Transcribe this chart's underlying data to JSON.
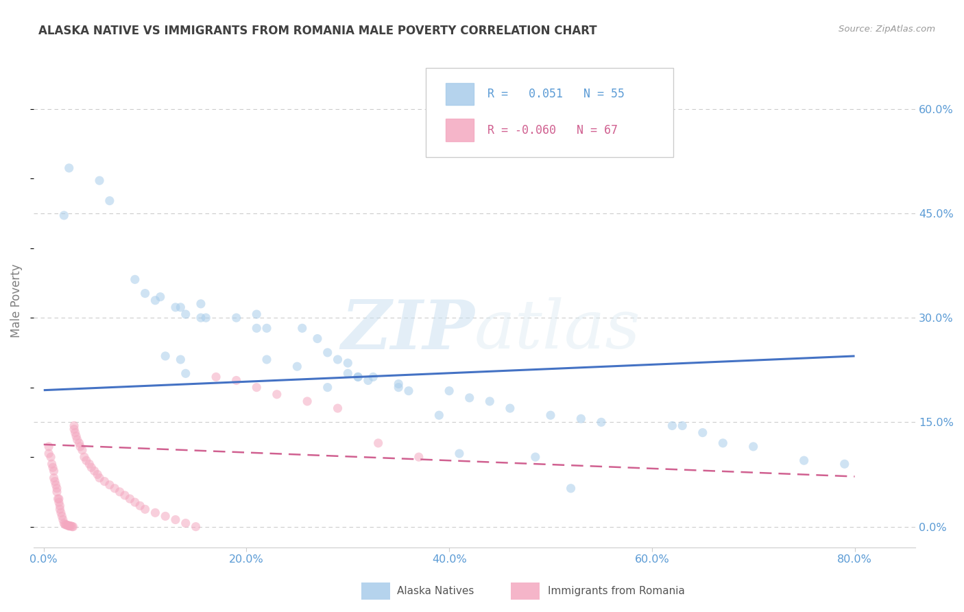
{
  "title": "ALASKA NATIVE VS IMMIGRANTS FROM ROMANIA MALE POVERTY CORRELATION CHART",
  "source": "Source: ZipAtlas.com",
  "xlabel_ticks": [
    "0.0%",
    "20.0%",
    "40.0%",
    "60.0%",
    "80.0%"
  ],
  "xlabel_vals": [
    0.0,
    0.2,
    0.4,
    0.6,
    0.8
  ],
  "ylabel": "Male Poverty",
  "ylabel_ticks": [
    "0.0%",
    "15.0%",
    "30.0%",
    "45.0%",
    "60.0%"
  ],
  "ylabel_vals": [
    0.0,
    0.15,
    0.3,
    0.45,
    0.6
  ],
  "ylim": [
    -0.03,
    0.68
  ],
  "xlim": [
    -0.01,
    0.86
  ],
  "watermark_zip": "ZIP",
  "watermark_atlas": "atlas",
  "legend_R1": " 0.051",
  "legend_N1": "55",
  "legend_R2": "-0.060",
  "legend_N2": "67",
  "alaska_natives_x": [
    0.025,
    0.055,
    0.065,
    0.02,
    0.09,
    0.1,
    0.115,
    0.11,
    0.13,
    0.135,
    0.14,
    0.155,
    0.155,
    0.16,
    0.19,
    0.21,
    0.21,
    0.22,
    0.255,
    0.27,
    0.28,
    0.29,
    0.3,
    0.3,
    0.31,
    0.325,
    0.28,
    0.35,
    0.36,
    0.4,
    0.42,
    0.44,
    0.46,
    0.5,
    0.53,
    0.55,
    0.62,
    0.63,
    0.65,
    0.67,
    0.7,
    0.75,
    0.79,
    0.485,
    0.52,
    0.12,
    0.135,
    0.14,
    0.22,
    0.25,
    0.31,
    0.32,
    0.35,
    0.39,
    0.41
  ],
  "alaska_natives_y": [
    0.515,
    0.497,
    0.468,
    0.447,
    0.355,
    0.335,
    0.33,
    0.325,
    0.315,
    0.315,
    0.305,
    0.32,
    0.3,
    0.3,
    0.3,
    0.305,
    0.285,
    0.285,
    0.285,
    0.27,
    0.25,
    0.24,
    0.235,
    0.22,
    0.215,
    0.215,
    0.2,
    0.2,
    0.195,
    0.195,
    0.185,
    0.18,
    0.17,
    0.16,
    0.155,
    0.15,
    0.145,
    0.145,
    0.135,
    0.12,
    0.115,
    0.095,
    0.09,
    0.1,
    0.055,
    0.245,
    0.24,
    0.22,
    0.24,
    0.23,
    0.215,
    0.21,
    0.205,
    0.16,
    0.105
  ],
  "romania_x": [
    0.005,
    0.005,
    0.007,
    0.008,
    0.009,
    0.01,
    0.01,
    0.011,
    0.012,
    0.013,
    0.013,
    0.014,
    0.015,
    0.015,
    0.016,
    0.016,
    0.017,
    0.018,
    0.019,
    0.02,
    0.021,
    0.022,
    0.023,
    0.024,
    0.025,
    0.025,
    0.026,
    0.027,
    0.028,
    0.029,
    0.03,
    0.03,
    0.031,
    0.032,
    0.033,
    0.035,
    0.036,
    0.038,
    0.04,
    0.042,
    0.045,
    0.047,
    0.05,
    0.053,
    0.055,
    0.06,
    0.065,
    0.07,
    0.075,
    0.08,
    0.085,
    0.09,
    0.095,
    0.1,
    0.11,
    0.12,
    0.13,
    0.14,
    0.15,
    0.17,
    0.19,
    0.21,
    0.23,
    0.26,
    0.29,
    0.33,
    0.37
  ],
  "romania_y": [
    0.115,
    0.105,
    0.1,
    0.09,
    0.085,
    0.08,
    0.07,
    0.065,
    0.06,
    0.055,
    0.05,
    0.04,
    0.04,
    0.035,
    0.03,
    0.025,
    0.02,
    0.015,
    0.01,
    0.005,
    0.003,
    0.003,
    0.002,
    0.002,
    0.001,
    0.001,
    0.001,
    0.001,
    0.0,
    0.0,
    0.145,
    0.14,
    0.135,
    0.13,
    0.125,
    0.12,
    0.115,
    0.11,
    0.1,
    0.095,
    0.09,
    0.085,
    0.08,
    0.075,
    0.07,
    0.065,
    0.06,
    0.055,
    0.05,
    0.045,
    0.04,
    0.035,
    0.03,
    0.025,
    0.02,
    0.015,
    0.01,
    0.005,
    0.0,
    0.215,
    0.21,
    0.2,
    0.19,
    0.18,
    0.17,
    0.12,
    0.1
  ],
  "blue_trend_x0": 0.0,
  "blue_trend_x1": 0.8,
  "blue_trend_y0": 0.196,
  "blue_trend_y1": 0.245,
  "pink_trend_x0": 0.0,
  "pink_trend_x1": 0.8,
  "pink_trend_y0": 0.118,
  "pink_trend_y1": 0.072,
  "scatter_alpha": 0.55,
  "scatter_size": 90,
  "blue_color": "#A8CCEA",
  "pink_color": "#F4A8C0",
  "blue_line_color": "#4472C4",
  "pink_line_color": "#D06090",
  "grid_color": "#CCCCCC",
  "title_color": "#404040",
  "axis_tick_color": "#5B9BD5",
  "ylabel_color": "#808080",
  "source_color": "#999999",
  "background_color": "#FFFFFF",
  "legend_box_color": "#CCCCCC",
  "bottom_legend_label1": "Alaska Natives",
  "bottom_legend_label2": "Immigrants from Romania"
}
